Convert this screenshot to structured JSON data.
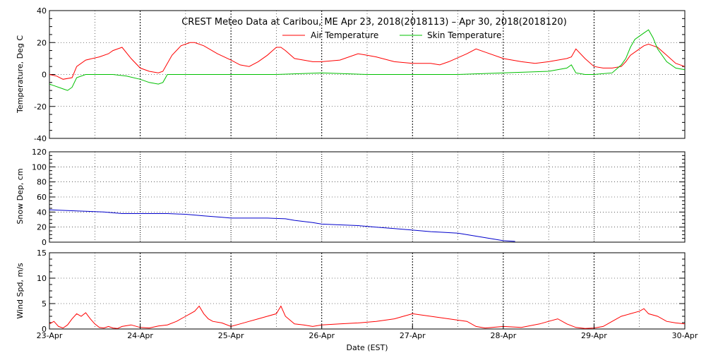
{
  "chart_data": [
    {
      "type": "line",
      "title": "CREST Meteo Data at Caribou, ME   Apr 23, 2018(2018113) – Apr 30, 2018(2018120)",
      "ylabel": "Temperature, Deg C",
      "ylim": [
        -40,
        40
      ],
      "yticks": [
        -40,
        -20,
        0,
        20,
        40
      ],
      "grid": true,
      "legend_position": "top-center",
      "series": [
        {
          "name": "Air Temperature",
          "color": "#ff0000",
          "x": [
            0,
            0.08,
            0.15,
            0.25,
            0.3,
            0.4,
            0.55,
            0.65,
            0.7,
            0.8,
            0.9,
            1.0,
            1.1,
            1.2,
            1.25,
            1.35,
            1.45,
            1.55,
            1.6,
            1.7,
            1.85,
            2.0,
            2.1,
            2.2,
            2.3,
            2.4,
            2.5,
            2.55,
            2.6,
            2.7,
            2.8,
            2.9,
            3.0,
            3.2,
            3.4,
            3.5,
            3.6,
            3.8,
            4.0,
            4.2,
            4.3,
            4.4,
            4.6,
            4.7,
            4.8,
            5.0,
            5.1,
            5.2,
            5.35,
            5.5,
            5.7,
            5.75,
            5.8,
            5.9,
            6.0,
            6.1,
            6.2,
            6.3,
            6.35,
            6.4,
            6.5,
            6.55,
            6.6,
            6.65,
            6.7,
            6.8,
            6.9,
            7.0
          ],
          "values": [
            0,
            -1,
            -3,
            -2,
            5,
            9,
            11,
            13,
            15,
            17,
            10,
            4,
            2,
            1,
            2,
            12,
            18,
            20,
            20,
            18,
            13,
            9,
            6,
            5,
            8,
            12,
            17,
            17,
            15,
            10,
            9,
            8,
            8,
            9,
            13,
            12,
            11,
            8,
            7,
            7,
            6,
            8,
            13,
            16,
            14,
            10,
            9,
            8,
            7,
            8,
            10,
            11,
            16,
            10,
            5,
            4,
            4,
            5,
            8,
            12,
            16,
            18,
            19,
            18,
            17,
            12,
            7,
            5
          ]
        },
        {
          "name": "Skin Temperature",
          "color": "#00c000",
          "x": [
            0,
            0.05,
            0.15,
            0.2,
            0.25,
            0.3,
            0.4,
            0.55,
            0.7,
            0.85,
            1.0,
            1.1,
            1.2,
            1.25,
            1.3,
            1.5,
            2.0,
            2.5,
            3.0,
            3.5,
            4.0,
            4.5,
            5.0,
            5.5,
            5.7,
            5.75,
            5.8,
            5.9,
            6.0,
            6.2,
            6.3,
            6.35,
            6.4,
            6.45,
            6.5,
            6.55,
            6.6,
            6.65,
            6.7,
            6.8,
            6.9,
            7.0
          ],
          "values": [
            -6,
            -7,
            -9,
            -10,
            -8,
            -2,
            0,
            0,
            0,
            -1,
            -3,
            -5,
            -6,
            -5,
            0,
            0,
            0,
            0,
            1,
            0,
            0,
            0,
            1,
            2,
            4,
            6,
            1,
            0,
            0,
            1,
            6,
            10,
            17,
            22,
            24,
            26,
            28,
            23,
            16,
            8,
            4,
            3
          ]
        }
      ]
    },
    {
      "type": "line",
      "ylabel": "Snow Dep, cm",
      "ylim": [
        0,
        120
      ],
      "yticks": [
        0,
        20,
        40,
        60,
        80,
        100,
        120
      ],
      "grid": true,
      "series": [
        {
          "color": "#0000cc",
          "x": [
            0,
            0.2,
            0.4,
            0.6,
            0.8,
            1.0,
            1.3,
            1.5,
            1.7,
            1.9,
            2.0,
            2.2,
            2.4,
            2.6,
            2.7,
            2.9,
            3.0,
            3.2,
            3.4,
            3.6,
            3.8,
            4.0,
            4.2,
            4.5,
            4.8,
            5.0,
            5.13
          ],
          "values": [
            43,
            42,
            41,
            40,
            38,
            38,
            38,
            37,
            35,
            33,
            32,
            32,
            32,
            31,
            29,
            26,
            24,
            23,
            22,
            20,
            18,
            16,
            14,
            12,
            6,
            2,
            1
          ]
        }
      ]
    },
    {
      "type": "line",
      "ylabel": "Wind Spd, m/s",
      "xlabel": "Date (EST)",
      "ylim": [
        0,
        15
      ],
      "yticks": [
        0,
        5,
        10,
        15
      ],
      "x_tick_labels": [
        "23-Apr",
        "24-Apr",
        "25-Apr",
        "26-Apr",
        "27-Apr",
        "28-Apr",
        "29-Apr",
        "30-Apr"
      ],
      "grid": true,
      "series": [
        {
          "color": "#ff0000",
          "x": [
            0,
            0.05,
            0.1,
            0.15,
            0.2,
            0.25,
            0.3,
            0.35,
            0.4,
            0.45,
            0.5,
            0.55,
            0.6,
            0.65,
            0.7,
            0.75,
            0.8,
            0.9,
            1.0,
            1.1,
            1.2,
            1.3,
            1.4,
            1.5,
            1.55,
            1.6,
            1.65,
            1.7,
            1.75,
            1.8,
            1.9,
            2.0,
            2.1,
            2.2,
            2.3,
            2.4,
            2.5,
            2.55,
            2.6,
            2.7,
            2.8,
            2.9,
            3.0,
            3.2,
            3.4,
            3.6,
            3.8,
            3.9,
            4.0,
            4.2,
            4.4,
            4.6,
            4.7,
            4.8,
            5.0,
            5.2,
            5.4,
            5.5,
            5.6,
            5.7,
            5.8,
            5.9,
            6.0,
            6.1,
            6.2,
            6.3,
            6.4,
            6.5,
            6.55,
            6.6,
            6.7,
            6.8,
            6.9,
            7.0
          ],
          "values": [
            1,
            1.5,
            0.5,
            0.2,
            0.8,
            2,
            3,
            2.5,
            3.2,
            2,
            1,
            0.3,
            0.2,
            0.5,
            0.2,
            0.1,
            0.5,
            0.8,
            0.3,
            0.2,
            0.6,
            0.8,
            1.5,
            2.5,
            3,
            3.5,
            4.5,
            3,
            2,
            1.5,
            1.2,
            0.5,
            1,
            1.5,
            2,
            2.5,
            3,
            4.5,
            2.5,
            1,
            0.8,
            0.5,
            0.8,
            1,
            1.2,
            1.5,
            2,
            2.5,
            3,
            2.5,
            2,
            1.5,
            0.5,
            0.2,
            0.5,
            0.3,
            1,
            1.5,
            2,
            1,
            0.3,
            0.1,
            0.2,
            0.5,
            1.5,
            2.5,
            3,
            3.5,
            4,
            3,
            2.5,
            1.5,
            1.2,
            1
          ]
        }
      ]
    }
  ]
}
